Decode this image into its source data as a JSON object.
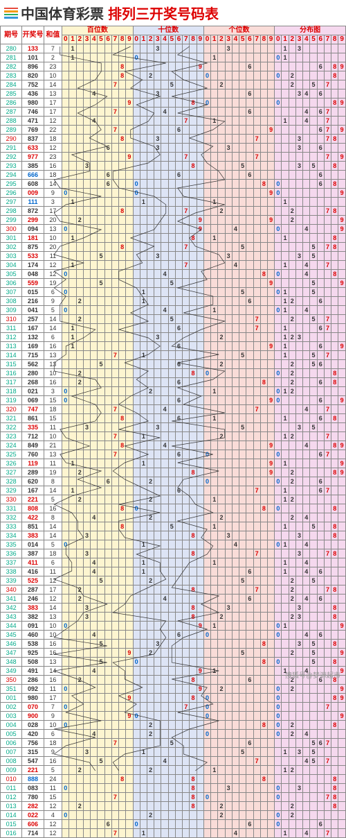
{
  "header": {
    "title_main": "中国体育彩票",
    "title_sub": "排列三开奖号码表",
    "logo_colors": [
      "#e74c3c",
      "#f39c12",
      "#27ae60",
      "#3498db"
    ]
  },
  "columns": {
    "issue": "期号",
    "number": "开奖号",
    "sum": "和值",
    "sections": [
      "百位数",
      "十位数",
      "个位数",
      "分布图"
    ],
    "digits": [
      "0",
      "1",
      "2",
      "3",
      "4",
      "5",
      "6",
      "7",
      "8",
      "9"
    ]
  },
  "section_bg": [
    "bg-yellow",
    "bg-blue",
    "bg-red",
    "bg-pink"
  ],
  "digit_colors": {
    "default": "#333",
    "red": "#d00",
    "blue": "#06c",
    "green": "#080"
  },
  "row_colors": {
    "issue_default": "#0a8",
    "issue_alt": "#d00",
    "num_default": "#333",
    "num_red": "#d00",
    "num_blue": "#06c"
  },
  "line_color": "#333",
  "watermark": "搜狐号@梦源超市",
  "rows": [
    {
      "i": "280",
      "n": "133",
      "s": "7",
      "ic": "#0a8",
      "nc": "#d00"
    },
    {
      "i": "281",
      "n": "101",
      "s": "2",
      "ic": "#0a8",
      "nc": "#333"
    },
    {
      "i": "282",
      "n": "896",
      "s": "23",
      "ic": "#0a8",
      "nc": "#333"
    },
    {
      "i": "283",
      "n": "820",
      "s": "10",
      "ic": "#0a8",
      "nc": "#333"
    },
    {
      "i": "284",
      "n": "752",
      "s": "14",
      "ic": "#0a8",
      "nc": "#333"
    },
    {
      "i": "285",
      "n": "436",
      "s": "13",
      "ic": "#0a8",
      "nc": "#333"
    },
    {
      "i": "286",
      "n": "980",
      "s": "17",
      "ic": "#0a8",
      "nc": "#333"
    },
    {
      "i": "287",
      "n": "746",
      "s": "17",
      "ic": "#0a8",
      "nc": "#333"
    },
    {
      "i": "288",
      "n": "471",
      "s": "12",
      "ic": "#0a8",
      "nc": "#333"
    },
    {
      "i": "289",
      "n": "769",
      "s": "22",
      "ic": "#0a8",
      "nc": "#333"
    },
    {
      "i": "290",
      "n": "837",
      "s": "18",
      "ic": "#d00",
      "nc": "#333"
    },
    {
      "i": "291",
      "n": "633",
      "s": "12",
      "ic": "#0a8",
      "nc": "#d00"
    },
    {
      "i": "292",
      "n": "977",
      "s": "23",
      "ic": "#0a8",
      "nc": "#d00"
    },
    {
      "i": "293",
      "n": "385",
      "s": "16",
      "ic": "#0a8",
      "nc": "#333"
    },
    {
      "i": "294",
      "n": "666",
      "s": "18",
      "ic": "#0a8",
      "nc": "#06c"
    },
    {
      "i": "295",
      "n": "608",
      "s": "14",
      "ic": "#0a8",
      "nc": "#333"
    },
    {
      "i": "296",
      "n": "009",
      "s": "9",
      "ic": "#0a8",
      "nc": "#d00"
    },
    {
      "i": "297",
      "n": "111",
      "s": "3",
      "ic": "#0a8",
      "nc": "#06c"
    },
    {
      "i": "298",
      "n": "872",
      "s": "17",
      "ic": "#0a8",
      "nc": "#333"
    },
    {
      "i": "299",
      "n": "299",
      "s": "20",
      "ic": "#0a8",
      "nc": "#d00"
    },
    {
      "i": "300",
      "n": "094",
      "s": "13",
      "ic": "#d00",
      "nc": "#333"
    },
    {
      "i": "301",
      "n": "181",
      "s": "10",
      "ic": "#0a8",
      "nc": "#d00"
    },
    {
      "i": "302",
      "n": "875",
      "s": "20",
      "ic": "#0a8",
      "nc": "#333"
    },
    {
      "i": "303",
      "n": "533",
      "s": "11",
      "ic": "#0a8",
      "nc": "#d00"
    },
    {
      "i": "304",
      "n": "174",
      "s": "12",
      "ic": "#0a8",
      "nc": "#333"
    },
    {
      "i": "305",
      "n": "048",
      "s": "12",
      "ic": "#0a8",
      "nc": "#333"
    },
    {
      "i": "306",
      "n": "559",
      "s": "19",
      "ic": "#0a8",
      "nc": "#d00"
    },
    {
      "i": "307",
      "n": "015",
      "s": "6",
      "ic": "#0a8",
      "nc": "#333"
    },
    {
      "i": "308",
      "n": "216",
      "s": "9",
      "ic": "#0a8",
      "nc": "#333"
    },
    {
      "i": "309",
      "n": "041",
      "s": "5",
      "ic": "#0a8",
      "nc": "#333"
    },
    {
      "i": "310",
      "n": "257",
      "s": "14",
      "ic": "#d00",
      "nc": "#333"
    },
    {
      "i": "311",
      "n": "167",
      "s": "14",
      "ic": "#0a8",
      "nc": "#333"
    },
    {
      "i": "312",
      "n": "132",
      "s": "6",
      "ic": "#0a8",
      "nc": "#333"
    },
    {
      "i": "313",
      "n": "169",
      "s": "16",
      "ic": "#0a8",
      "nc": "#333"
    },
    {
      "i": "314",
      "n": "715",
      "s": "13",
      "ic": "#0a8",
      "nc": "#333"
    },
    {
      "i": "315",
      "n": "562",
      "s": "13",
      "ic": "#0a8",
      "nc": "#333"
    },
    {
      "i": "316",
      "n": "280",
      "s": "10",
      "ic": "#0a8",
      "nc": "#333"
    },
    {
      "i": "317",
      "n": "268",
      "s": "16",
      "ic": "#0a8",
      "nc": "#333"
    },
    {
      "i": "318",
      "n": "021",
      "s": "3",
      "ic": "#0a8",
      "nc": "#333"
    },
    {
      "i": "319",
      "n": "069",
      "s": "15",
      "ic": "#0a8",
      "nc": "#333"
    },
    {
      "i": "320",
      "n": "747",
      "s": "18",
      "ic": "#d00",
      "nc": "#d00"
    },
    {
      "i": "321",
      "n": "861",
      "s": "15",
      "ic": "#0a8",
      "nc": "#333"
    },
    {
      "i": "322",
      "n": "335",
      "s": "11",
      "ic": "#0a8",
      "nc": "#d00"
    },
    {
      "i": "323",
      "n": "712",
      "s": "10",
      "ic": "#0a8",
      "nc": "#333"
    },
    {
      "i": "324",
      "n": "849",
      "s": "21",
      "ic": "#0a8",
      "nc": "#333"
    },
    {
      "i": "325",
      "n": "760",
      "s": "13",
      "ic": "#0a8",
      "nc": "#333"
    },
    {
      "i": "326",
      "n": "119",
      "s": "11",
      "ic": "#0a8",
      "nc": "#d00"
    },
    {
      "i": "327",
      "n": "289",
      "s": "19",
      "ic": "#0a8",
      "nc": "#333"
    },
    {
      "i": "328",
      "n": "620",
      "s": "8",
      "ic": "#0a8",
      "nc": "#333"
    },
    {
      "i": "329",
      "n": "167",
      "s": "14",
      "ic": "#0a8",
      "nc": "#333"
    },
    {
      "i": "330",
      "n": "221",
      "s": "5",
      "ic": "#d00",
      "nc": "#d00"
    },
    {
      "i": "331",
      "n": "808",
      "s": "16",
      "ic": "#0a8",
      "nc": "#d00"
    },
    {
      "i": "332",
      "n": "422",
      "s": "8",
      "ic": "#0a8",
      "nc": "#d00"
    },
    {
      "i": "333",
      "n": "851",
      "s": "14",
      "ic": "#0a8",
      "nc": "#333"
    },
    {
      "i": "334",
      "n": "383",
      "s": "14",
      "ic": "#0a8",
      "nc": "#d00"
    },
    {
      "i": "335",
      "n": "014",
      "s": "5",
      "ic": "#0a8",
      "nc": "#333"
    },
    {
      "i": "336",
      "n": "387",
      "s": "18",
      "ic": "#0a8",
      "nc": "#333"
    },
    {
      "i": "337",
      "n": "411",
      "s": "6",
      "ic": "#0a8",
      "nc": "#d00"
    },
    {
      "i": "338",
      "n": "416",
      "s": "11",
      "ic": "#0a8",
      "nc": "#333"
    },
    {
      "i": "339",
      "n": "525",
      "s": "12",
      "ic": "#0a8",
      "nc": "#d00"
    },
    {
      "i": "340",
      "n": "287",
      "s": "17",
      "ic": "#d00",
      "nc": "#333"
    },
    {
      "i": "341",
      "n": "246",
      "s": "12",
      "ic": "#0a8",
      "nc": "#333"
    },
    {
      "i": "342",
      "n": "383",
      "s": "14",
      "ic": "#0a8",
      "nc": "#d00"
    },
    {
      "i": "343",
      "n": "382",
      "s": "13",
      "ic": "#0a8",
      "nc": "#333"
    },
    {
      "i": "344",
      "n": "091",
      "s": "10",
      "ic": "#0a8",
      "nc": "#333"
    },
    {
      "i": "345",
      "n": "460",
      "s": "10",
      "ic": "#0a8",
      "nc": "#333"
    },
    {
      "i": "346",
      "n": "538",
      "s": "16",
      "ic": "#0a8",
      "nc": "#333"
    },
    {
      "i": "347",
      "n": "925",
      "s": "16",
      "ic": "#0a8",
      "nc": "#333"
    },
    {
      "i": "348",
      "n": "508",
      "s": "13",
      "ic": "#0a8",
      "nc": "#333"
    },
    {
      "i": "349",
      "n": "491",
      "s": "14",
      "ic": "#0a8",
      "nc": "#333"
    },
    {
      "i": "350",
      "n": "286",
      "s": "16",
      "ic": "#d00",
      "nc": "#333"
    },
    {
      "i": "351",
      "n": "092",
      "s": "11",
      "ic": "#0a8",
      "nc": "#333"
    },
    {
      "i": "001",
      "n": "980",
      "s": "17",
      "ic": "#0a8",
      "nc": "#333"
    },
    {
      "i": "002",
      "n": "070",
      "s": "7",
      "ic": "#0a8",
      "nc": "#d00"
    },
    {
      "i": "003",
      "n": "900",
      "s": "9",
      "ic": "#0a8",
      "nc": "#d00"
    },
    {
      "i": "004",
      "n": "028",
      "s": "10",
      "ic": "#0a8",
      "nc": "#333"
    },
    {
      "i": "005",
      "n": "420",
      "s": "6",
      "ic": "#0a8",
      "nc": "#333"
    },
    {
      "i": "006",
      "n": "756",
      "s": "18",
      "ic": "#0a8",
      "nc": "#333"
    },
    {
      "i": "007",
      "n": "315",
      "s": "9",
      "ic": "#0a8",
      "nc": "#333"
    },
    {
      "i": "008",
      "n": "547",
      "s": "16",
      "ic": "#0a8",
      "nc": "#333"
    },
    {
      "i": "009",
      "n": "221",
      "s": "5",
      "ic": "#0a8",
      "nc": "#d00"
    },
    {
      "i": "010",
      "n": "888",
      "s": "24",
      "ic": "#d00",
      "nc": "#06c"
    },
    {
      "i": "011",
      "n": "083",
      "s": "11",
      "ic": "#0a8",
      "nc": "#333"
    },
    {
      "i": "012",
      "n": "780",
      "s": "15",
      "ic": "#0a8",
      "nc": "#333"
    },
    {
      "i": "013",
      "n": "282",
      "s": "12",
      "ic": "#0a8",
      "nc": "#d00"
    },
    {
      "i": "014",
      "n": "022",
      "s": "4",
      "ic": "#0a8",
      "nc": "#d00"
    },
    {
      "i": "015",
      "n": "606",
      "s": "12",
      "ic": "#0a8",
      "nc": "#d00"
    },
    {
      "i": "016",
      "n": "714",
      "s": "12",
      "ic": "#0a8",
      "nc": "#333"
    }
  ]
}
